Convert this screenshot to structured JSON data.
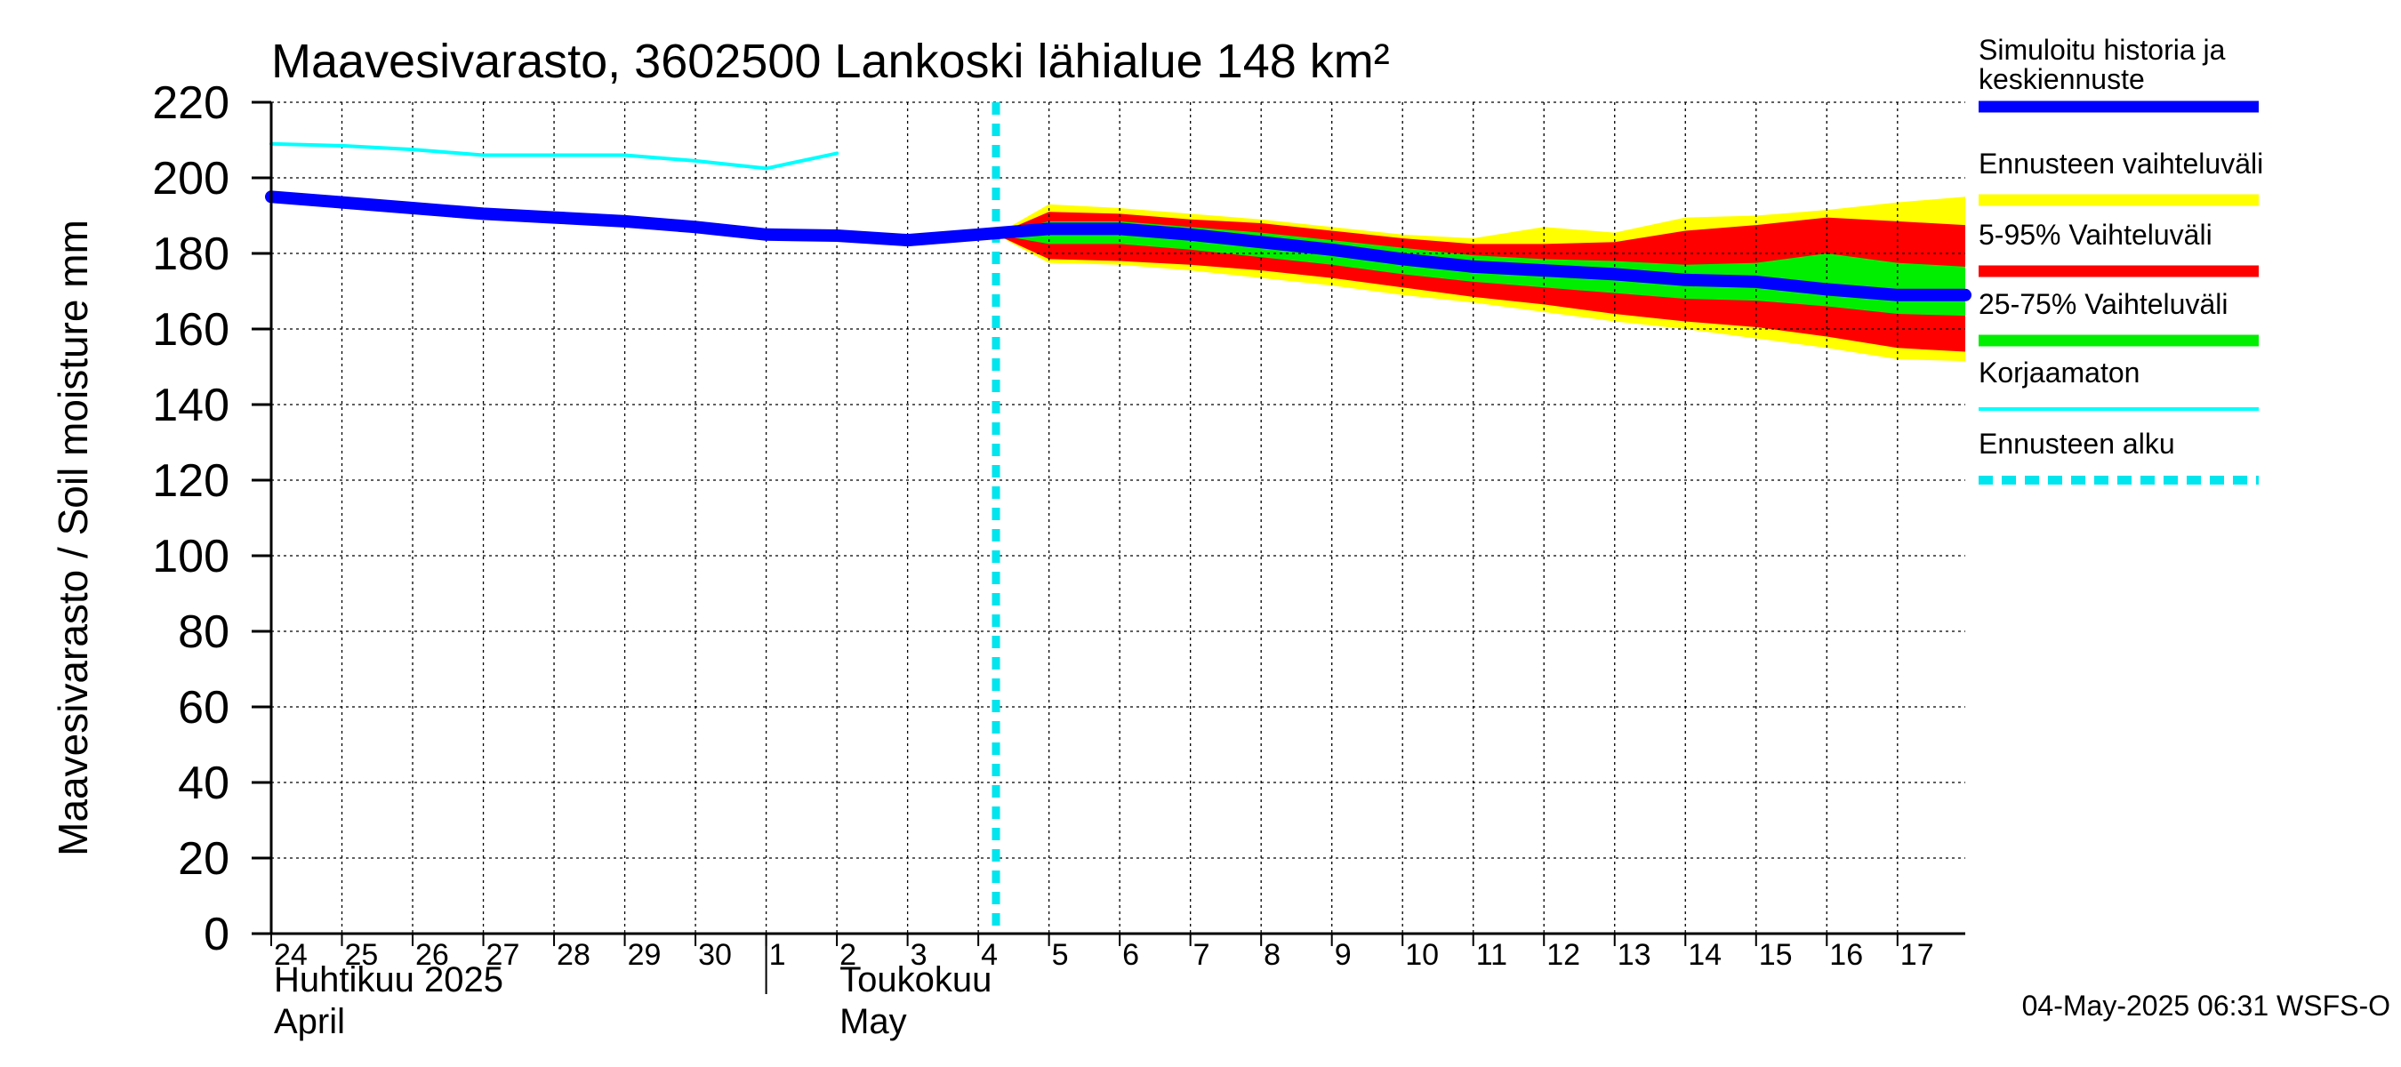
{
  "chart_data": {
    "type": "area",
    "title": "Maavesivarasto, 3602500 Lankoski lähialue 148 km²",
    "ylabel": "Maavesivarasto / Soil moisture   mm",
    "ylim": [
      0,
      220
    ],
    "yticks": [
      0,
      20,
      40,
      60,
      80,
      100,
      120,
      140,
      160,
      180,
      200,
      220
    ],
    "grid": true,
    "xlim": [
      "2025-04-24",
      "2025-05-17T23:00"
    ],
    "xtick_labels": [
      {
        "date": "2025-04-24",
        "label": "24"
      },
      {
        "date": "2025-04-25",
        "label": "25"
      },
      {
        "date": "2025-04-26",
        "label": "26"
      },
      {
        "date": "2025-04-27",
        "label": "27"
      },
      {
        "date": "2025-04-28",
        "label": "28"
      },
      {
        "date": "2025-04-29",
        "label": "29"
      },
      {
        "date": "2025-04-30",
        "label": "30"
      },
      {
        "date": "2025-05-01",
        "label": "1"
      },
      {
        "date": "2025-05-02",
        "label": "2"
      },
      {
        "date": "2025-05-03",
        "label": "3"
      },
      {
        "date": "2025-05-04",
        "label": "4"
      },
      {
        "date": "2025-05-05",
        "label": "5"
      },
      {
        "date": "2025-05-06",
        "label": "6"
      },
      {
        "date": "2025-05-07",
        "label": "7"
      },
      {
        "date": "2025-05-08",
        "label": "8"
      },
      {
        "date": "2025-05-09",
        "label": "9"
      },
      {
        "date": "2025-05-10",
        "label": "10"
      },
      {
        "date": "2025-05-11",
        "label": "11"
      },
      {
        "date": "2025-05-12",
        "label": "12"
      },
      {
        "date": "2025-05-13",
        "label": "13"
      },
      {
        "date": "2025-05-14",
        "label": "14"
      },
      {
        "date": "2025-05-15",
        "label": "15"
      },
      {
        "date": "2025-05-16",
        "label": "16"
      },
      {
        "date": "2025-05-17",
        "label": "17"
      }
    ],
    "month_labels": [
      {
        "date": "2025-04-24",
        "line1": "Huhtikuu  2025",
        "line2": "April"
      },
      {
        "date": "2025-05-02",
        "line1": "Toukokuu",
        "line2": "May"
      }
    ],
    "month_separator": "2025-05-01",
    "forecast_start": "2025-05-04T06:00",
    "legend_position": "right",
    "legend": [
      {
        "label": "Simuloitu historia ja keskiennuste",
        "line1": "Simuloitu historia ja",
        "line2": "keskiennuste",
        "color": "#0000ff",
        "style": "thick"
      },
      {
        "label": "Ennusteen vaihteluväli",
        "color": "#ffff00",
        "style": "thick"
      },
      {
        "label": "5-95% Vaihteluväli",
        "color": "#ff0000",
        "style": "thick"
      },
      {
        "label": "25-75% Vaihteluväli",
        "color": "#00ee00",
        "style": "thick"
      },
      {
        "label": "Korjaamaton",
        "color": "#00ffff",
        "style": "thin"
      },
      {
        "label": "Ennusteen alku",
        "color": "#00e5ee",
        "style": "dashed"
      }
    ],
    "series": [
      {
        "name": "Simuloitu historia ja keskiennuste",
        "color": "#0000ff",
        "x": [
          "2025-04-24",
          "2025-04-25",
          "2025-04-26",
          "2025-04-27",
          "2025-04-28",
          "2025-04-29",
          "2025-04-30",
          "2025-05-01",
          "2025-05-02",
          "2025-05-03",
          "2025-05-04",
          "2025-05-05",
          "2025-05-06",
          "2025-05-07",
          "2025-05-08",
          "2025-05-09",
          "2025-05-10",
          "2025-05-11",
          "2025-05-12",
          "2025-05-13",
          "2025-05-14",
          "2025-05-15",
          "2025-05-16",
          "2025-05-17",
          "2025-05-17T23:00"
        ],
        "y": [
          195,
          193.5,
          192,
          190.5,
          189.5,
          188.5,
          187,
          185,
          184.7,
          183.5,
          185,
          186.5,
          186.5,
          185,
          183,
          181,
          178.5,
          176.5,
          175.5,
          174.5,
          173,
          172.5,
          170.5,
          169,
          169
        ]
      },
      {
        "name": "Korjaamaton",
        "color": "#00ffff",
        "x": [
          "2025-04-24",
          "2025-04-25",
          "2025-04-26",
          "2025-04-27",
          "2025-04-28",
          "2025-04-29",
          "2025-04-30",
          "2025-05-01",
          "2025-05-02"
        ],
        "y": [
          209,
          208.5,
          207.5,
          206,
          206,
          206,
          204.5,
          202.5,
          206.5
        ]
      }
    ],
    "bands": [
      {
        "name": "Ennusteen vaihteluväli",
        "color": "#ffff00",
        "x": [
          "2025-05-04T06:00",
          "2025-05-05",
          "2025-05-06",
          "2025-05-07",
          "2025-05-08",
          "2025-05-09",
          "2025-05-10",
          "2025-05-11",
          "2025-05-12",
          "2025-05-13",
          "2025-05-14",
          "2025-05-15",
          "2025-05-16",
          "2025-05-17",
          "2025-05-17T23:00"
        ],
        "upper": [
          185,
          193,
          192,
          190.5,
          189,
          187,
          185,
          184,
          187,
          185.5,
          189.5,
          190,
          191.5,
          193.5,
          195
        ],
        "lower": [
          185,
          177.5,
          177,
          175.5,
          173.5,
          171.5,
          169,
          167,
          164.5,
          162,
          160,
          157.5,
          155,
          152,
          151.5
        ]
      },
      {
        "name": "5-95% Vaihteluväli",
        "color": "#ff0000",
        "x": [
          "2025-05-04T06:00",
          "2025-05-05",
          "2025-05-06",
          "2025-05-07",
          "2025-05-08",
          "2025-05-09",
          "2025-05-10",
          "2025-05-11",
          "2025-05-12",
          "2025-05-13",
          "2025-05-14",
          "2025-05-15",
          "2025-05-16",
          "2025-05-17",
          "2025-05-17T23:00"
        ],
        "upper": [
          185,
          191,
          190.5,
          189,
          188,
          186,
          184,
          182.5,
          182.5,
          183,
          186,
          187.5,
          189.5,
          188.5,
          187.5
        ],
        "lower": [
          185,
          178.5,
          178,
          177,
          175.5,
          173.5,
          171,
          168.5,
          166.5,
          164,
          162,
          160.5,
          158,
          155,
          154
        ]
      },
      {
        "name": "25-75% Vaihteluväli",
        "color": "#00ee00",
        "x": [
          "2025-05-04T06:00",
          "2025-05-05",
          "2025-05-06",
          "2025-05-07",
          "2025-05-08",
          "2025-05-09",
          "2025-05-10",
          "2025-05-11",
          "2025-05-12",
          "2025-05-13",
          "2025-05-14",
          "2025-05-15",
          "2025-05-16",
          "2025-05-17",
          "2025-05-17T23:00"
        ],
        "upper": [
          185,
          188.5,
          188.5,
          187,
          185.5,
          183.5,
          181.5,
          179.5,
          178.5,
          178,
          177,
          177.5,
          180,
          177.5,
          176.5
        ],
        "lower": [
          185,
          182.5,
          182.5,
          181,
          179,
          177,
          174.5,
          172.5,
          171,
          169.5,
          168,
          167.5,
          166,
          164,
          163.5
        ]
      }
    ]
  },
  "footer": "04-May-2025 06:31 WSFS-O"
}
